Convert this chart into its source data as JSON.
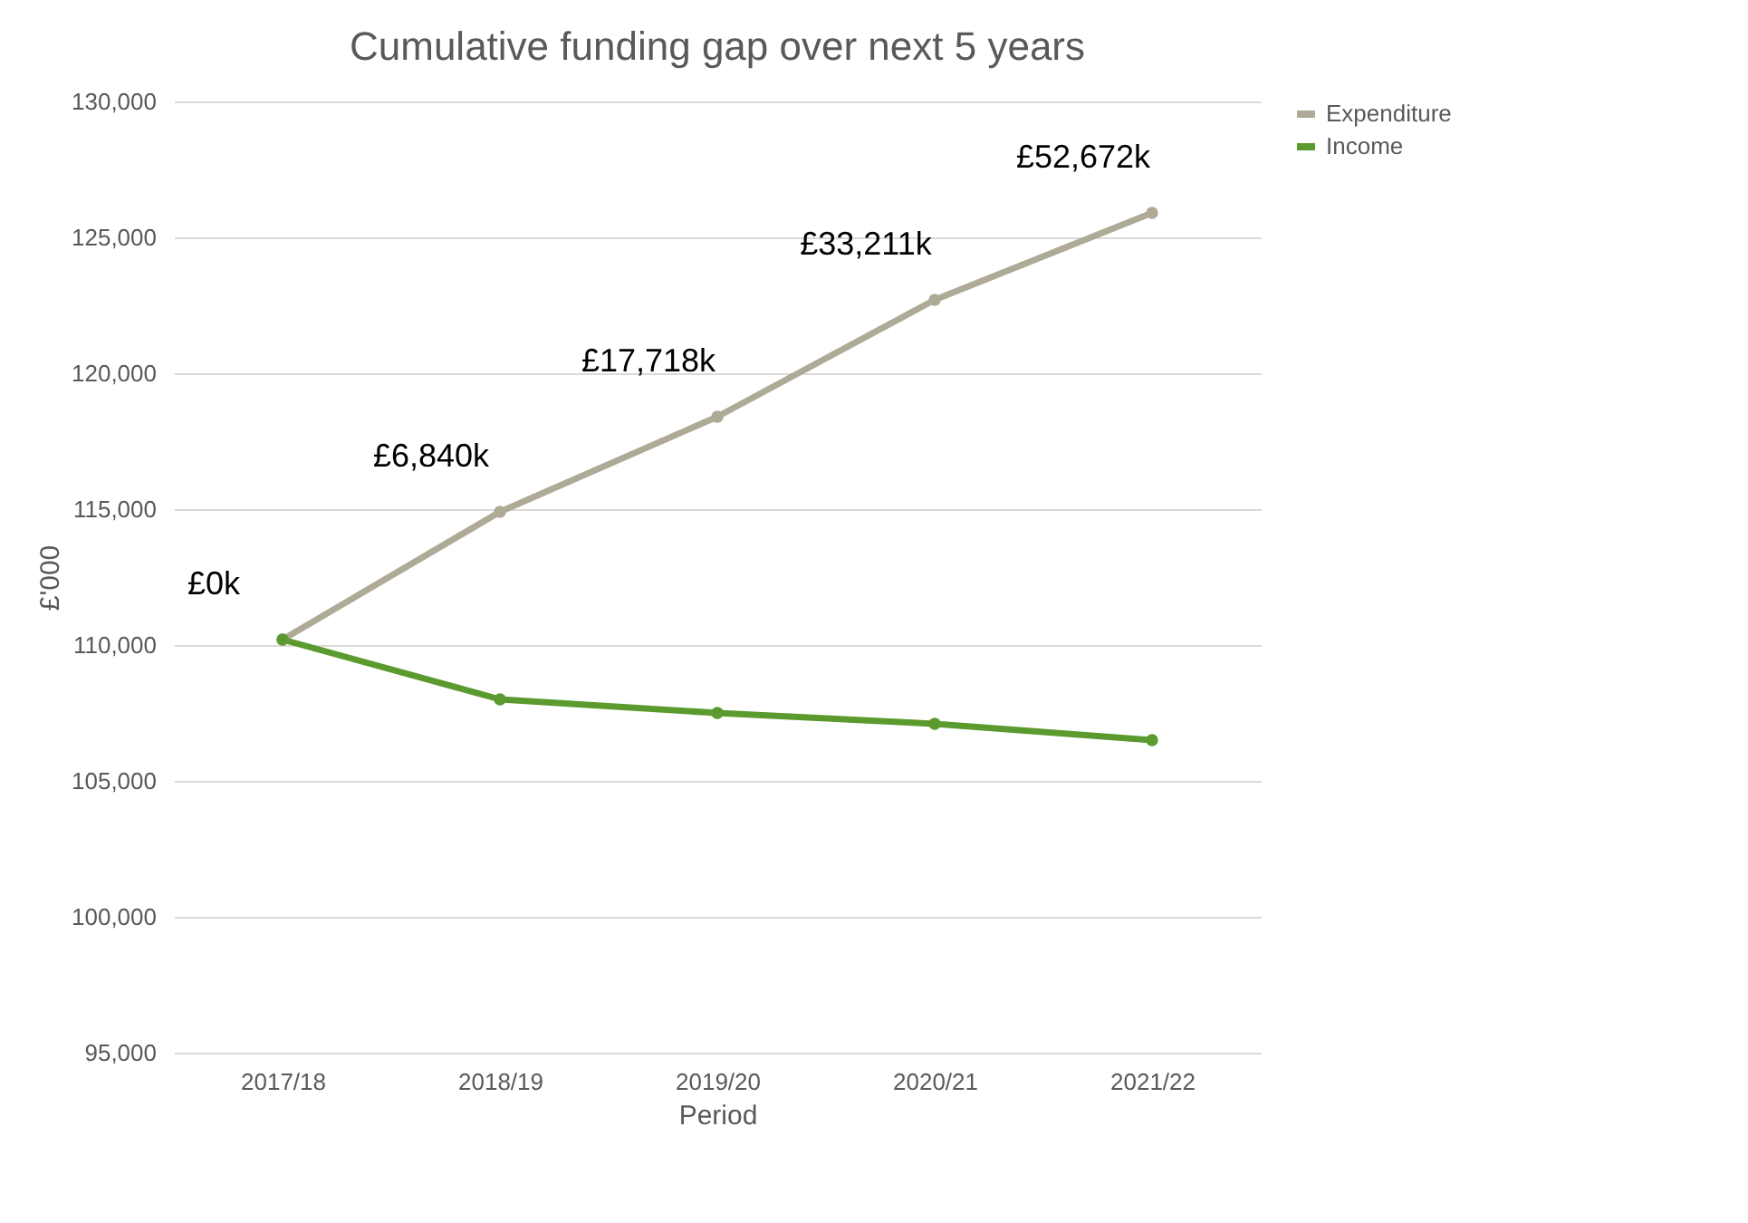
{
  "chart_data": {
    "type": "line",
    "title": "Cumulative funding gap over next 5 years",
    "xlabel": "Period",
    "ylabel": "£'000",
    "categories": [
      "2017/18",
      "2018/19",
      "2019/20",
      "2020/21",
      "2021/22"
    ],
    "series": [
      {
        "name": "Expenditure",
        "color": "#aeaa96",
        "values": [
          110200,
          114900,
          118400,
          122700,
          125900
        ]
      },
      {
        "name": "Income",
        "color": "#5b9a2e",
        "values": [
          110200,
          108000,
          107500,
          107100,
          106500
        ]
      }
    ],
    "annotations": [
      {
        "text": "£0k",
        "x": "2017/18",
        "y": 110200
      },
      {
        "text": "£6,840k",
        "x": "2018/19",
        "y": 114900
      },
      {
        "text": "£17,718k",
        "x": "2019/20",
        "y": 118400
      },
      {
        "text": "£33,211k",
        "x": "2020/21",
        "y": 122700
      },
      {
        "text": "£52,672k",
        "x": "2021/22",
        "y": 125900
      }
    ],
    "ylim": [
      95000,
      130000
    ],
    "yticks": [
      {
        "value": 95000,
        "label": "95,000"
      },
      {
        "value": 100000,
        "label": "100,000"
      },
      {
        "value": 105000,
        "label": "105,000"
      },
      {
        "value": 110000,
        "label": "110,000"
      },
      {
        "value": 115000,
        "label": "115,000"
      },
      {
        "value": 120000,
        "label": "120,000"
      },
      {
        "value": 125000,
        "label": "125,000"
      },
      {
        "value": 130000,
        "label": "130,000"
      }
    ],
    "grid": "y",
    "legend": "right",
    "marker": "circle",
    "line_style": "solid"
  }
}
